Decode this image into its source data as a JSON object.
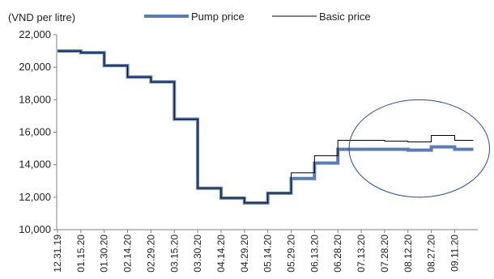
{
  "chart_data": {
    "type": "line",
    "title": "",
    "ylabel": "(VND per litre)",
    "xlabel": "",
    "ylim": [
      10000,
      22000
    ],
    "yticks": [
      10000,
      12000,
      14000,
      16000,
      18000,
      20000,
      22000
    ],
    "ytick_labels": [
      "10,000",
      "12,000",
      "14,000",
      "16,000",
      "18,000",
      "20,000",
      "22,000"
    ],
    "x": [
      "12.31.19",
      "01.15.20",
      "01.30.20",
      "02.14.20",
      "02.29.20",
      "03.15.20",
      "03.30.20",
      "04.14.20",
      "04.29.20",
      "05.14.20",
      "05.29.20",
      "06.13.20",
      "06.28.20",
      "07.13.20",
      "07.28.20",
      "08.12.20",
      "08.27.20",
      "09.11.20"
    ],
    "xtick_labels": [
      "12.31.19",
      "01.15.20",
      "01.30.20",
      "02.14.20",
      "02.29.20",
      "03.15.20",
      "03.30.20",
      "04.14.20",
      "04.29.20",
      "05.14.20",
      "05.29.20",
      "06.13.20",
      "06.28.20",
      "07.13.20",
      "07.28.20",
      "08.12.20",
      "08.27.20",
      "09.11.20"
    ],
    "grid": false,
    "legend_position": "top",
    "series": [
      {
        "name": "Pump price",
        "color": "#5b7db1",
        "style": "thick-step",
        "points": [
          [
            "12.31.19",
            21000
          ],
          [
            "01.15.20",
            20900
          ],
          [
            "01.30.20",
            20100
          ],
          [
            "02.14.20",
            19400
          ],
          [
            "02.29.20",
            19100
          ],
          [
            "03.15.20",
            16800
          ],
          [
            "03.30.20",
            12550
          ],
          [
            "04.14.20",
            11950
          ],
          [
            "04.29.20",
            11650
          ],
          [
            "05.14.20",
            12250
          ],
          [
            "05.29.20",
            13150
          ],
          [
            "06.13.20",
            14100
          ],
          [
            "06.28.20",
            14950
          ],
          [
            "07.13.20",
            14950
          ],
          [
            "07.28.20",
            14950
          ],
          [
            "08.12.20",
            14900
          ],
          [
            "08.27.20",
            15100
          ],
          [
            "09.11.20",
            14950
          ]
        ]
      },
      {
        "name": "Basic price",
        "color": "#000000",
        "style": "thin-step",
        "points": [
          [
            "12.31.19",
            21000
          ],
          [
            "01.15.20",
            20900
          ],
          [
            "01.30.20",
            20100
          ],
          [
            "02.14.20",
            19400
          ],
          [
            "02.29.20",
            19100
          ],
          [
            "03.15.20",
            16800
          ],
          [
            "03.30.20",
            12550
          ],
          [
            "04.14.20",
            11950
          ],
          [
            "04.29.20",
            11650
          ],
          [
            "05.14.20",
            12250
          ],
          [
            "05.29.20",
            13500
          ],
          [
            "06.13.20",
            14550
          ],
          [
            "06.28.20",
            15500
          ],
          [
            "07.13.20",
            15500
          ],
          [
            "07.28.20",
            15450
          ],
          [
            "08.12.20",
            15400
          ],
          [
            "08.27.20",
            15800
          ],
          [
            "09.11.20",
            15500
          ]
        ]
      }
    ],
    "annotations": [
      {
        "type": "ellipse",
        "color": "#1f4e99",
        "x_from": "07.13.20",
        "x_to": "09.11.20",
        "y_from": 12000,
        "y_to": 18000
      }
    ]
  }
}
